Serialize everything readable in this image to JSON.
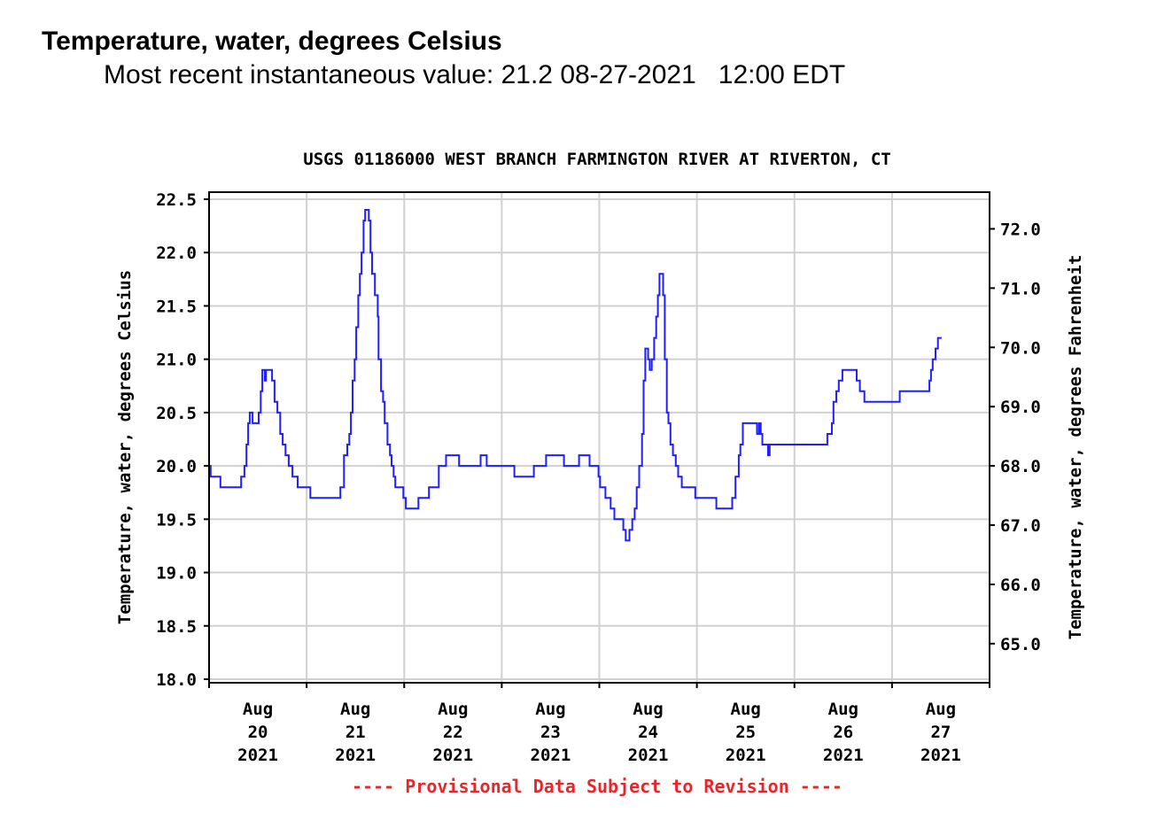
{
  "header": {
    "title": "Temperature, water, degrees Celsius",
    "subtitle": "Most recent instantaneous value: 21.2 08-27-2021   12:00 EDT"
  },
  "chart_data": {
    "type": "line",
    "title": "USGS 01186000 WEST BRANCH FARMINGTON RIVER AT RIVERTON, CT",
    "ylabel": "Temperature, water, degrees Celsius",
    "ylabel_right": "Temperature, water, degrees Fahrenheit",
    "ylim": [
      18.0,
      22.5
    ],
    "yticks": [
      "18.0",
      "18.5",
      "19.0",
      "19.5",
      "20.0",
      "20.5",
      "21.0",
      "21.5",
      "22.0",
      "22.5"
    ],
    "yticks_right": [
      "65.0",
      "66.0",
      "67.0",
      "68.0",
      "69.0",
      "70.0",
      "71.0",
      "72.0"
    ],
    "xlim_hours": [
      0,
      192
    ],
    "x_unit": "hours since Aug 20 2021 00:00",
    "xticks": [
      [
        "Aug",
        "20",
        "2021"
      ],
      [
        "Aug",
        "21",
        "2021"
      ],
      [
        "Aug",
        "22",
        "2021"
      ],
      [
        "Aug",
        "23",
        "2021"
      ],
      [
        "Aug",
        "24",
        "2021"
      ],
      [
        "Aug",
        "25",
        "2021"
      ],
      [
        "Aug",
        "26",
        "2021"
      ],
      [
        "Aug",
        "27",
        "2021"
      ]
    ],
    "footer": "---- Provisional Data Subject to Revision ----",
    "colors": {
      "line": "#1f1fff",
      "grid": "#d0d0d0",
      "footer": "#e8262a"
    },
    "series": [
      {
        "name": "Temperature",
        "points": [
          [
            0,
            20.0
          ],
          [
            0.4,
            19.9
          ],
          [
            2.6,
            19.9
          ],
          [
            2.8,
            19.8
          ],
          [
            7.4,
            19.8
          ],
          [
            7.9,
            19.9
          ],
          [
            8.7,
            20.0
          ],
          [
            9.2,
            20.2
          ],
          [
            9.6,
            20.4
          ],
          [
            10.0,
            20.5
          ],
          [
            10.7,
            20.4
          ],
          [
            12.2,
            20.5
          ],
          [
            12.7,
            20.7
          ],
          [
            13.1,
            20.9
          ],
          [
            13.7,
            20.8
          ],
          [
            14.0,
            20.9
          ],
          [
            15.5,
            20.8
          ],
          [
            16.1,
            20.6
          ],
          [
            16.8,
            20.5
          ],
          [
            17.5,
            20.3
          ],
          [
            18.1,
            20.2
          ],
          [
            18.8,
            20.1
          ],
          [
            19.6,
            20.0
          ],
          [
            20.5,
            19.9
          ],
          [
            21.8,
            19.8
          ],
          [
            24.9,
            19.7
          ],
          [
            31.6,
            19.7
          ],
          [
            32.3,
            19.8
          ],
          [
            33.2,
            20.1
          ],
          [
            34.0,
            20.2
          ],
          [
            34.5,
            20.3
          ],
          [
            34.9,
            20.5
          ],
          [
            35.3,
            20.8
          ],
          [
            35.8,
            21.0
          ],
          [
            36.2,
            21.3
          ],
          [
            36.7,
            21.6
          ],
          [
            37.1,
            21.8
          ],
          [
            37.5,
            22.0
          ],
          [
            38.0,
            22.3
          ],
          [
            38.4,
            22.4
          ],
          [
            39.3,
            22.3
          ],
          [
            39.7,
            22.0
          ],
          [
            40.1,
            21.8
          ],
          [
            40.8,
            21.6
          ],
          [
            41.5,
            21.4
          ],
          [
            41.7,
            21.0
          ],
          [
            42.3,
            20.7
          ],
          [
            42.8,
            20.6
          ],
          [
            43.2,
            20.4
          ],
          [
            43.9,
            20.2
          ],
          [
            44.5,
            20.1
          ],
          [
            44.9,
            20.0
          ],
          [
            45.4,
            19.9
          ],
          [
            45.8,
            19.8
          ],
          [
            47.8,
            19.7
          ],
          [
            48.4,
            19.6
          ],
          [
            51.1,
            19.6
          ],
          [
            51.5,
            19.7
          ],
          [
            52.8,
            19.7
          ],
          [
            54.1,
            19.8
          ],
          [
            55.9,
            19.8
          ],
          [
            56.5,
            20.0
          ],
          [
            57.6,
            20.0
          ],
          [
            58.3,
            20.1
          ],
          [
            61.1,
            20.1
          ],
          [
            61.5,
            20.0
          ],
          [
            66.3,
            20.0
          ],
          [
            66.8,
            20.1
          ],
          [
            67.9,
            20.1
          ],
          [
            68.3,
            20.0
          ],
          [
            74.6,
            20.0
          ],
          [
            75.1,
            19.9
          ],
          [
            79.4,
            19.9
          ],
          [
            79.9,
            20.0
          ],
          [
            82.5,
            20.0
          ],
          [
            82.9,
            20.1
          ],
          [
            86.6,
            20.1
          ],
          [
            87.3,
            20.0
          ],
          [
            90.8,
            20.0
          ],
          [
            91.0,
            20.1
          ],
          [
            93.4,
            20.1
          ],
          [
            93.6,
            20.0
          ],
          [
            95.1,
            20.0
          ],
          [
            95.8,
            19.9
          ],
          [
            96.2,
            19.8
          ],
          [
            97.5,
            19.7
          ],
          [
            98.8,
            19.6
          ],
          [
            99.7,
            19.5
          ],
          [
            100.6,
            19.5
          ],
          [
            101.9,
            19.4
          ],
          [
            102.5,
            19.3
          ],
          [
            103.4,
            19.4
          ],
          [
            104.1,
            19.5
          ],
          [
            104.7,
            19.6
          ],
          [
            105.2,
            19.8
          ],
          [
            105.8,
            20.0
          ],
          [
            106.5,
            20.3
          ],
          [
            106.9,
            20.8
          ],
          [
            107.3,
            21.1
          ],
          [
            108.0,
            21.0
          ],
          [
            108.4,
            20.9
          ],
          [
            108.9,
            21.0
          ],
          [
            109.5,
            21.2
          ],
          [
            110.0,
            21.4
          ],
          [
            110.4,
            21.6
          ],
          [
            110.8,
            21.8
          ],
          [
            111.7,
            21.6
          ],
          [
            112.1,
            21.0
          ],
          [
            112.6,
            20.5
          ],
          [
            113.0,
            20.4
          ],
          [
            113.5,
            20.2
          ],
          [
            114.1,
            20.1
          ],
          [
            114.8,
            20.0
          ],
          [
            115.4,
            19.9
          ],
          [
            116.3,
            19.8
          ],
          [
            119.3,
            19.8
          ],
          [
            119.6,
            19.7
          ],
          [
            124.1,
            19.7
          ],
          [
            124.8,
            19.6
          ],
          [
            128.0,
            19.6
          ],
          [
            128.7,
            19.7
          ],
          [
            129.5,
            19.9
          ],
          [
            130.3,
            20.1
          ],
          [
            130.7,
            20.2
          ],
          [
            131.3,
            20.4
          ],
          [
            134.4,
            20.4
          ],
          [
            134.8,
            20.3
          ],
          [
            135.3,
            20.4
          ],
          [
            135.7,
            20.3
          ],
          [
            136.1,
            20.2
          ],
          [
            137.5,
            20.1
          ],
          [
            137.9,
            20.2
          ],
          [
            151.4,
            20.2
          ],
          [
            152.1,
            20.3
          ],
          [
            153.2,
            20.4
          ],
          [
            153.6,
            20.6
          ],
          [
            154.3,
            20.7
          ],
          [
            154.9,
            20.8
          ],
          [
            155.8,
            20.9
          ],
          [
            158.8,
            20.9
          ],
          [
            159.3,
            20.8
          ],
          [
            160.1,
            20.7
          ],
          [
            161.2,
            20.6
          ],
          [
            169.5,
            20.6
          ],
          [
            169.9,
            20.7
          ],
          [
            176.7,
            20.7
          ],
          [
            177.2,
            20.8
          ],
          [
            177.6,
            20.9
          ],
          [
            178.0,
            21.0
          ],
          [
            178.7,
            21.1
          ],
          [
            179.3,
            21.2
          ],
          [
            180.2,
            21.2
          ]
        ]
      }
    ]
  }
}
